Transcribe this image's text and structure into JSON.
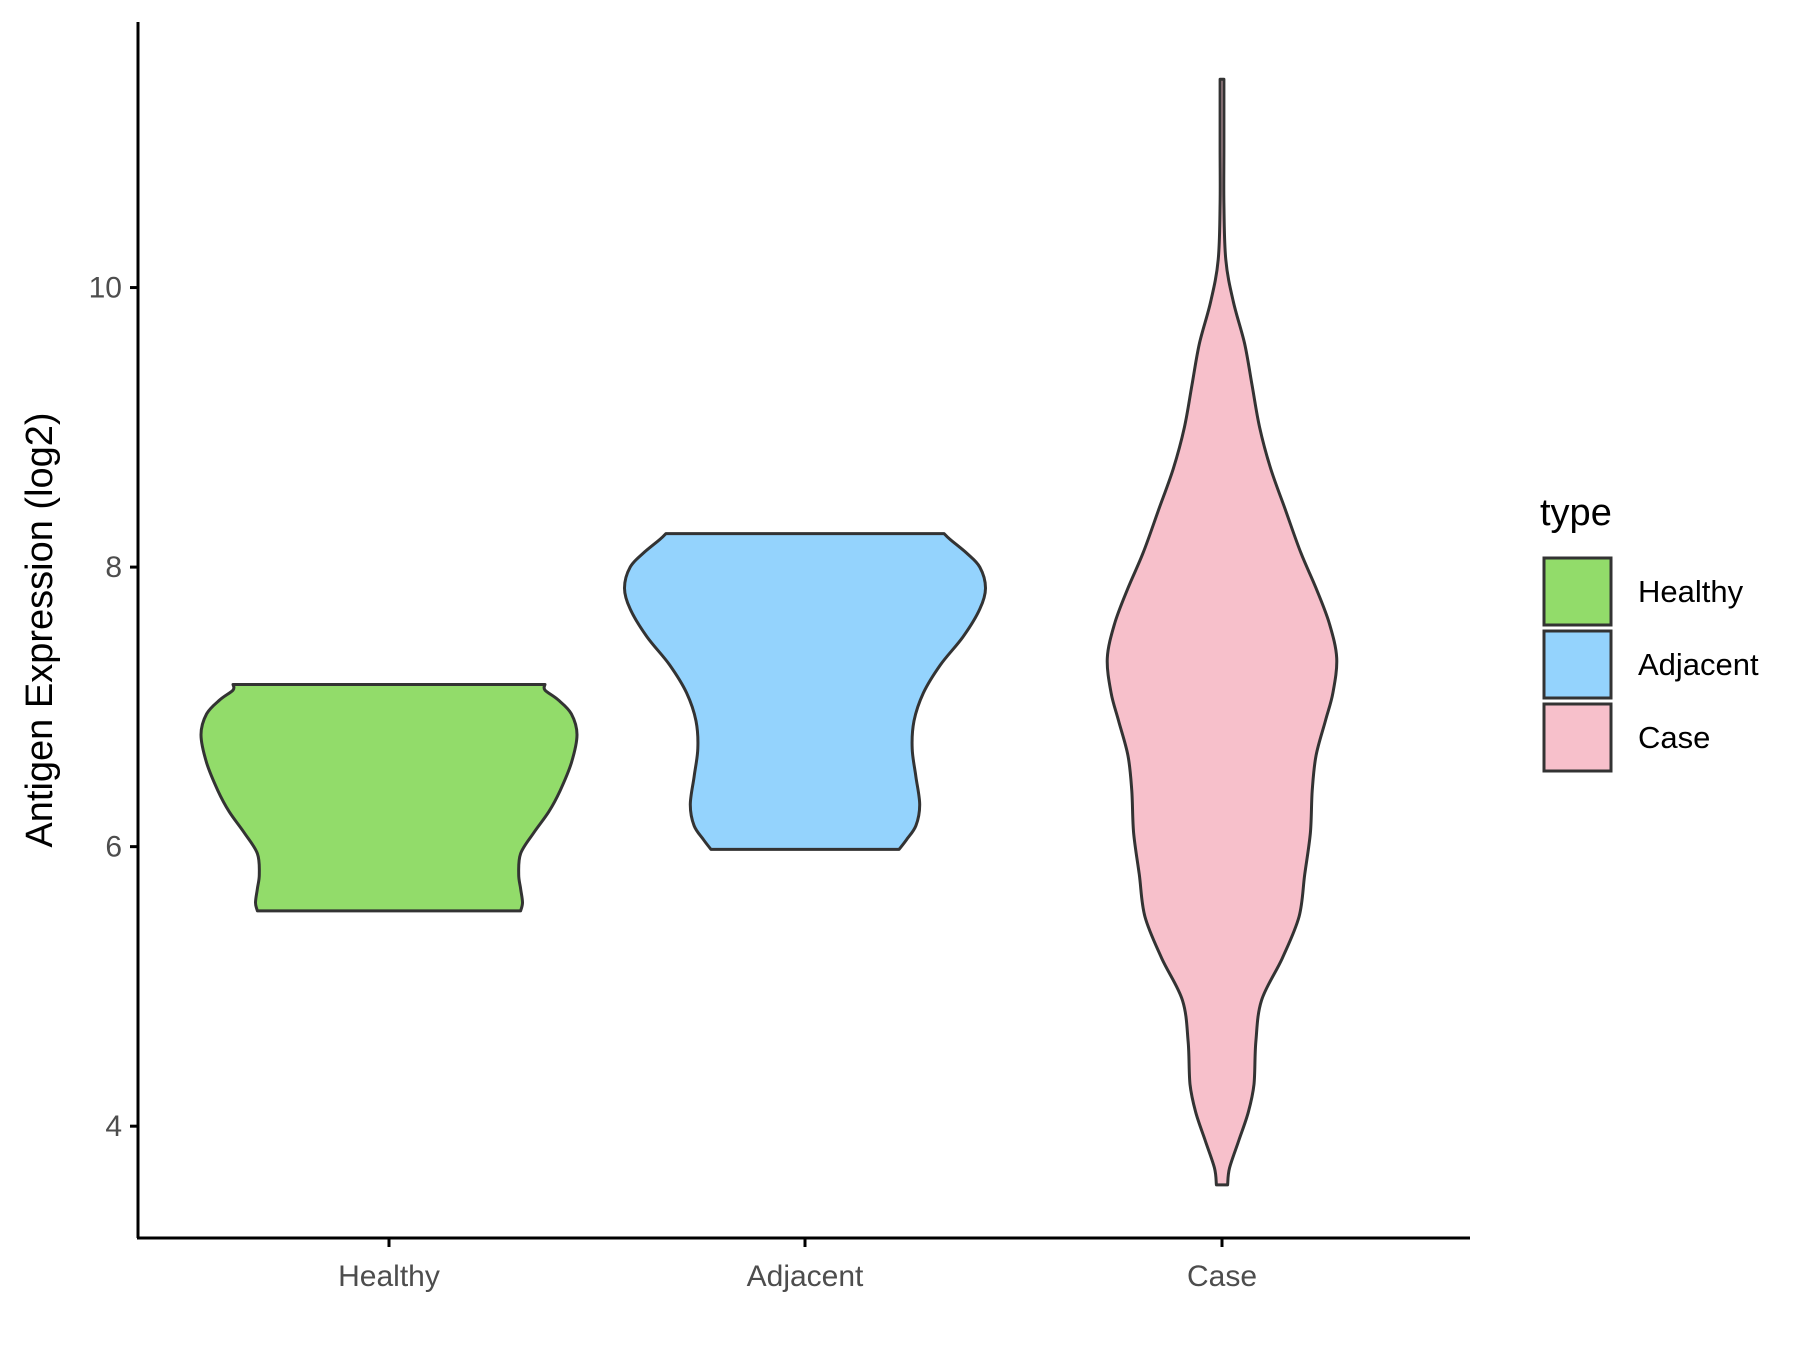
{
  "chart_data": {
    "type": "violin",
    "ylabel": "Antigen Expression (log2)",
    "xlabel": "",
    "ylim": [
      3.2,
      11.9
    ],
    "y_ticks": [
      4,
      6,
      8,
      10
    ],
    "grid": false,
    "legend": {
      "title": "type",
      "placement": "right",
      "entries": [
        "Healthy",
        "Adjacent",
        "Case"
      ]
    },
    "categories": [
      "Healthy",
      "Adjacent",
      "Case"
    ],
    "colors": {
      "Healthy": "#92dc6a",
      "Adjacent": "#94d3fd",
      "Case": "#f7c0cb",
      "outline": "#333333"
    },
    "violins": [
      {
        "category": "Healthy",
        "min": 5.54,
        "max": 7.16,
        "profile": [
          [
            5.54,
            0.7
          ],
          [
            5.6,
            0.71
          ],
          [
            5.7,
            0.7
          ],
          [
            5.8,
            0.69
          ],
          [
            5.95,
            0.7
          ],
          [
            6.1,
            0.77
          ],
          [
            6.25,
            0.85
          ],
          [
            6.4,
            0.91
          ],
          [
            6.6,
            0.97
          ],
          [
            6.8,
            1.0
          ],
          [
            6.95,
            0.97
          ],
          [
            7.05,
            0.9
          ],
          [
            7.12,
            0.83
          ],
          [
            7.16,
            0.83
          ]
        ]
      },
      {
        "category": "Adjacent",
        "min": 5.98,
        "max": 8.24,
        "profile": [
          [
            5.98,
            0.5
          ],
          [
            6.05,
            0.54
          ],
          [
            6.15,
            0.59
          ],
          [
            6.3,
            0.61
          ],
          [
            6.5,
            0.59
          ],
          [
            6.7,
            0.57
          ],
          [
            6.9,
            0.58
          ],
          [
            7.1,
            0.63
          ],
          [
            7.3,
            0.72
          ],
          [
            7.5,
            0.84
          ],
          [
            7.7,
            0.93
          ],
          [
            7.85,
            0.96
          ],
          [
            8.0,
            0.93
          ],
          [
            8.1,
            0.86
          ],
          [
            8.2,
            0.77
          ],
          [
            8.24,
            0.74
          ]
        ]
      },
      {
        "category": "Case",
        "min": 3.58,
        "max": 11.49,
        "profile": [
          [
            3.58,
            0.03
          ],
          [
            3.7,
            0.04
          ],
          [
            3.9,
            0.09
          ],
          [
            4.1,
            0.14
          ],
          [
            4.3,
            0.17
          ],
          [
            4.6,
            0.18
          ],
          [
            4.9,
            0.21
          ],
          [
            5.2,
            0.32
          ],
          [
            5.5,
            0.41
          ],
          [
            5.8,
            0.44
          ],
          [
            6.1,
            0.47
          ],
          [
            6.4,
            0.48
          ],
          [
            6.65,
            0.5
          ],
          [
            6.9,
            0.55
          ],
          [
            7.1,
            0.59
          ],
          [
            7.35,
            0.61
          ],
          [
            7.6,
            0.57
          ],
          [
            7.85,
            0.5
          ],
          [
            8.1,
            0.42
          ],
          [
            8.4,
            0.34
          ],
          [
            8.7,
            0.26
          ],
          [
            9.0,
            0.2
          ],
          [
            9.3,
            0.16
          ],
          [
            9.6,
            0.12
          ],
          [
            9.9,
            0.06
          ],
          [
            10.2,
            0.02
          ],
          [
            10.6,
            0.01
          ],
          [
            11.0,
            0.01
          ],
          [
            11.49,
            0.01
          ]
        ]
      }
    ]
  }
}
